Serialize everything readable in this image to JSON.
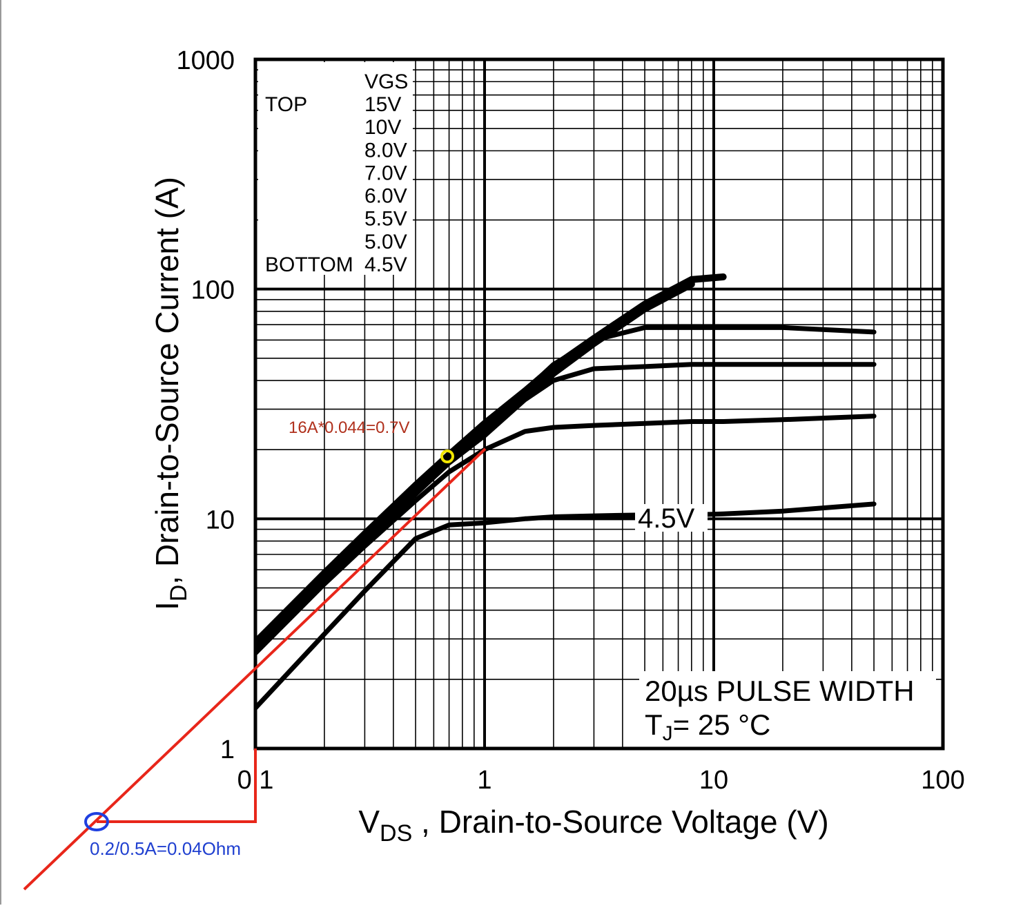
{
  "chart_data": {
    "type": "line",
    "xscale": "log",
    "yscale": "log",
    "xlim": [
      0.1,
      100
    ],
    "ylim": [
      1,
      1000
    ],
    "xticks": [
      0.1,
      1,
      10,
      100
    ],
    "yticks": [
      1,
      10,
      100,
      1000
    ],
    "grid": true,
    "minor_grid": true,
    "legend": "upper left",
    "legend_title": "VGS",
    "legend_top": "TOP",
    "legend_bottom": "BOTTOM",
    "xlabel": {
      "main": "V",
      "sub": "DS",
      "rest": " , Drain-to-Source Voltage (V)"
    },
    "ylabel": {
      "main": "I",
      "sub": "D",
      "rest": ", Drain-to-Source Current (A)"
    },
    "note_pulse": "20µs PULSE WIDTH",
    "note_temp": {
      "main": "T",
      "sub": "J",
      "rest": "= 25 °C"
    },
    "annotation_red": "16A*0.044=0.7V",
    "annotation_blue": "0.2/0.5A=0.04Ohm",
    "x": [
      0.1,
      0.2,
      0.3,
      0.5,
      0.7,
      1,
      1.5,
      2,
      3,
      5,
      8,
      11,
      20,
      50
    ],
    "series": [
      {
        "name": "15V",
        "color": "#000000",
        "values": [
          2.9,
          5.8,
          8.6,
          14,
          19,
          26,
          36,
          46,
          61,
          86,
          110,
          113,
          null,
          null
        ]
      },
      {
        "name": "10V",
        "color": "#000000",
        "values": [
          2.85,
          5.7,
          8.5,
          13.8,
          18.8,
          25.5,
          35,
          45,
          60,
          85,
          108,
          null,
          null,
          null
        ]
      },
      {
        "name": "8.0V",
        "color": "#000000",
        "values": [
          2.8,
          5.6,
          8.4,
          13.6,
          18.6,
          25,
          34.5,
          44,
          59,
          84,
          107,
          null,
          null,
          null
        ]
      },
      {
        "name": "7.0V",
        "color": "#000000",
        "values": [
          2.75,
          5.5,
          8.3,
          13.5,
          18.4,
          24.5,
          34,
          43,
          58,
          82,
          105,
          null,
          null,
          null
        ]
      },
      {
        "name": "6.0V",
        "color": "#000000",
        "values": [
          2.7,
          5.4,
          8.1,
          13.2,
          18,
          24,
          36,
          47,
          60,
          68,
          68,
          68,
          68,
          65
        ]
      },
      {
        "name": "5.5V",
        "color": "#000000",
        "values": [
          2.65,
          5.3,
          7.9,
          12.8,
          17.5,
          23,
          33,
          40,
          45,
          46,
          47,
          47,
          47,
          47
        ]
      },
      {
        "name": "5.0V",
        "color": "#000000",
        "values": [
          2.6,
          5.2,
          7.6,
          12,
          16,
          20,
          24,
          25,
          25.5,
          26,
          26.5,
          26.5,
          27,
          28
        ]
      },
      {
        "name": "4.5V",
        "color": "#000000",
        "values": [
          1.5,
          3.15,
          4.85,
          8.2,
          9.4,
          9.6,
          10,
          10.2,
          10.3,
          10.4,
          10.4,
          10.5,
          10.8,
          11.6
        ]
      }
    ]
  }
}
